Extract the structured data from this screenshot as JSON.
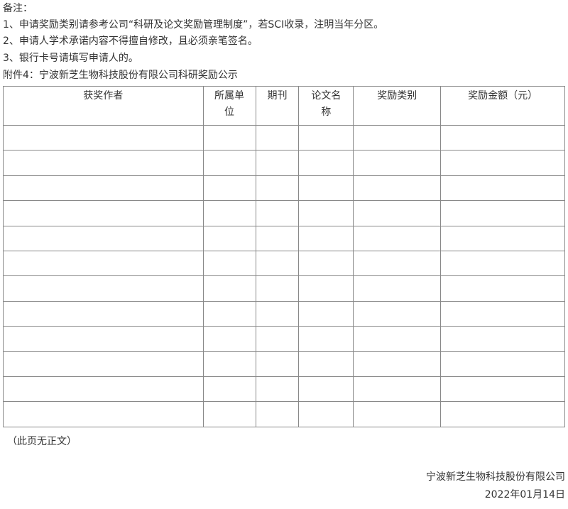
{
  "notes": {
    "heading": "备注：",
    "items": [
      "1、申请奖励类别请参考公司“科研及论文奖励管理制度”，若SCI收录，注明当年分区。",
      "2、申请人学术承诺内容不得擅自修改，且必须亲笔签名。",
      "3、银行卡号请填写申请人的。"
    ]
  },
  "attachment_title": "附件4：宁波新芝生物科技股份有限公司科研奖励公示",
  "table": {
    "headers": [
      "获奖作者",
      "所属单位",
      "期刊",
      "论文名称",
      "奖励类别",
      "奖励金额（元）"
    ],
    "rows": [
      [
        "",
        "",
        "",
        "",
        "",
        ""
      ],
      [
        "",
        "",
        "",
        "",
        "",
        ""
      ],
      [
        "",
        "",
        "",
        "",
        "",
        ""
      ],
      [
        "",
        "",
        "",
        "",
        "",
        ""
      ],
      [
        "",
        "",
        "",
        "",
        "",
        ""
      ],
      [
        "",
        "",
        "",
        "",
        "",
        ""
      ],
      [
        "",
        "",
        "",
        "",
        "",
        ""
      ],
      [
        "",
        "",
        "",
        "",
        "",
        ""
      ],
      [
        "",
        "",
        "",
        "",
        "",
        ""
      ],
      [
        "",
        "",
        "",
        "",
        "",
        ""
      ],
      [
        "",
        "",
        "",
        "",
        "",
        ""
      ],
      [
        "",
        "",
        "",
        "",
        "",
        ""
      ]
    ]
  },
  "no_text_note": "（此页无正文）",
  "signature": {
    "company": "宁波新芝生物科技股份有限公司",
    "date": "2022年01月14日"
  }
}
